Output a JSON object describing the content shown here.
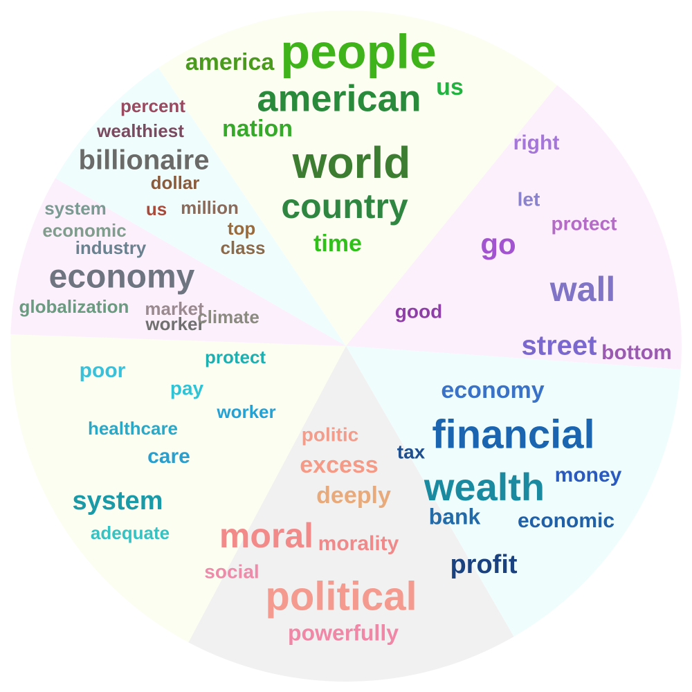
{
  "segments": [
    {
      "id": "green",
      "fill": "#fdfef2",
      "words": [
        {
          "text": "people",
          "color": "#3eb31a"
        },
        {
          "text": "american",
          "color": "#2a8a3c"
        },
        {
          "text": "america",
          "color": "#4a9a1e"
        },
        {
          "text": "us",
          "color": "#22b240"
        },
        {
          "text": "nation",
          "color": "#36a92a"
        },
        {
          "text": "world",
          "color": "#3d7d32"
        },
        {
          "text": "country",
          "color": "#2f8640"
        },
        {
          "text": "time",
          "color": "#2fc01a"
        }
      ]
    },
    {
      "id": "purple",
      "fill": "#fdf0fd",
      "words": [
        {
          "text": "right",
          "color": "#a476d9"
        },
        {
          "text": "let",
          "color": "#8a82cc"
        },
        {
          "text": "protect",
          "color": "#b36bc6"
        },
        {
          "text": "go",
          "color": "#a253cf"
        },
        {
          "text": "wall",
          "color": "#8074c7"
        },
        {
          "text": "good",
          "color": "#8e3fa6"
        },
        {
          "text": "street",
          "color": "#7a68cf"
        },
        {
          "text": "bottom",
          "color": "#9a5ab0"
        }
      ]
    },
    {
      "id": "blue",
      "fill": "#f0fdfd",
      "words": [
        {
          "text": "economy",
          "color": "#3a72c8"
        },
        {
          "text": "financial",
          "color": "#1a64b0"
        },
        {
          "text": "tax",
          "color": "#1f4f8f"
        },
        {
          "text": "wealth",
          "color": "#1a8aa0"
        },
        {
          "text": "money",
          "color": "#2a5ac0"
        },
        {
          "text": "bank",
          "color": "#236ba8"
        },
        {
          "text": "economic",
          "color": "#1f60a8"
        },
        {
          "text": "profit",
          "color": "#1a4280"
        }
      ]
    },
    {
      "id": "pink",
      "fill": "#f1f1f1",
      "words": [
        {
          "text": "politic",
          "color": "#f29c8c"
        },
        {
          "text": "excess",
          "color": "#f49a86"
        },
        {
          "text": "deeply",
          "color": "#e8aa7a"
        },
        {
          "text": "moral",
          "color": "#f28a8a"
        },
        {
          "text": "morality",
          "color": "#f08a8a"
        },
        {
          "text": "social",
          "color": "#ee8aaa"
        },
        {
          "text": "political",
          "color": "#f49a8e"
        },
        {
          "text": "powerfully",
          "color": "#f087a6"
        }
      ]
    },
    {
      "id": "cyan",
      "fill": "#fdfef2",
      "words": [
        {
          "text": "protect",
          "color": "#1eb0b0"
        },
        {
          "text": "poor",
          "color": "#3ac0d8"
        },
        {
          "text": "pay",
          "color": "#2ec4d6"
        },
        {
          "text": "worker",
          "color": "#24a2d6"
        },
        {
          "text": "healthcare",
          "color": "#2aa8c8"
        },
        {
          "text": "care",
          "color": "#2a9fce"
        },
        {
          "text": "system",
          "color": "#1a9aa6"
        },
        {
          "text": "adequate",
          "color": "#36c2c2"
        }
      ]
    },
    {
      "id": "gray",
      "fill": "#fdf0fd",
      "words": [
        {
          "text": "system",
          "color": "#7a9a92"
        },
        {
          "text": "economic",
          "color": "#809c8c"
        },
        {
          "text": "industry",
          "color": "#6a8290"
        },
        {
          "text": "economy",
          "color": "#6e7480"
        },
        {
          "text": "globalization",
          "color": "#6a9a80"
        },
        {
          "text": "market",
          "color": "#9a8a90"
        },
        {
          "text": "worker",
          "color": "#707070"
        },
        {
          "text": "climate",
          "color": "#8a8a80"
        }
      ]
    },
    {
      "id": "brown",
      "fill": "#f0fdfd",
      "words": [
        {
          "text": "percent",
          "color": "#9a4a60"
        },
        {
          "text": "wealthiest",
          "color": "#7a4a60"
        },
        {
          "text": "billionaire",
          "color": "#6a6a68"
        },
        {
          "text": "dollar",
          "color": "#8a5a3a"
        },
        {
          "text": "us",
          "color": "#aa4a3a"
        },
        {
          "text": "million",
          "color": "#8a6a5a"
        },
        {
          "text": "top",
          "color": "#9a6a3a"
        },
        {
          "text": "class",
          "color": "#8a6a4a"
        }
      ]
    }
  ]
}
